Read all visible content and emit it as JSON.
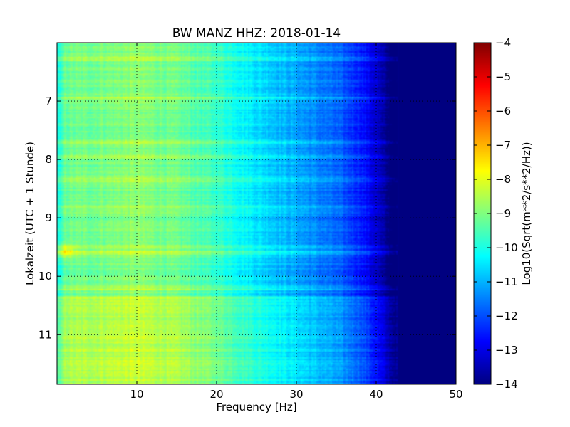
{
  "chart_data": {
    "type": "heatmap",
    "title": "BW MANZ HHZ: 2018-01-14",
    "xlabel": "Frequency [Hz]",
    "ylabel": "Lokalzeit (UTC + 1 Stunde)",
    "xlim": [
      0,
      50
    ],
    "ylim": [
      6.0,
      11.85
    ],
    "y_inverted": true,
    "grid": true,
    "x_ticks": [
      10,
      20,
      30,
      40,
      50
    ],
    "y_ticks": [
      7,
      8,
      9,
      10,
      11
    ],
    "colorbar": {
      "label": "Log10(Sqrt(m**2/s**2/Hz))",
      "colormap": "jet",
      "range": [
        -14,
        -4
      ],
      "ticks": [
        -4,
        -5,
        -6,
        -7,
        -8,
        -9,
        -10,
        -11,
        -12,
        -13,
        -14
      ]
    },
    "spectrum_profile": [
      {
        "freq": 0.5,
        "value": -9.4
      },
      {
        "freq": 1,
        "value": -8.6
      },
      {
        "freq": 5,
        "value": -8.5
      },
      {
        "freq": 10,
        "value": -8.3
      },
      {
        "freq": 15,
        "value": -8.6
      },
      {
        "freq": 20,
        "value": -9.1
      },
      {
        "freq": 25,
        "value": -9.9
      },
      {
        "freq": 30,
        "value": -10.5
      },
      {
        "freq": 35,
        "value": -11.2
      },
      {
        "freq": 38,
        "value": -11.8
      },
      {
        "freq": 40,
        "value": -12.6
      },
      {
        "freq": 42,
        "value": -13.7
      },
      {
        "freq": 43,
        "value": -14
      },
      {
        "freq": 50,
        "value": -14
      }
    ],
    "time_offsets": [
      {
        "time_range": [
          6.0,
          10.35
        ],
        "offset": -0.6
      },
      {
        "time_range": [
          10.35,
          11.85
        ],
        "offset": 0.0
      }
    ],
    "bright_lines": [
      6.28,
      6.95,
      7.7,
      7.95,
      8.35,
      8.8,
      9.5,
      9.6,
      10.2
    ],
    "peak": {
      "freq": 1.0,
      "time": 9.57,
      "value": -8.0
    }
  }
}
